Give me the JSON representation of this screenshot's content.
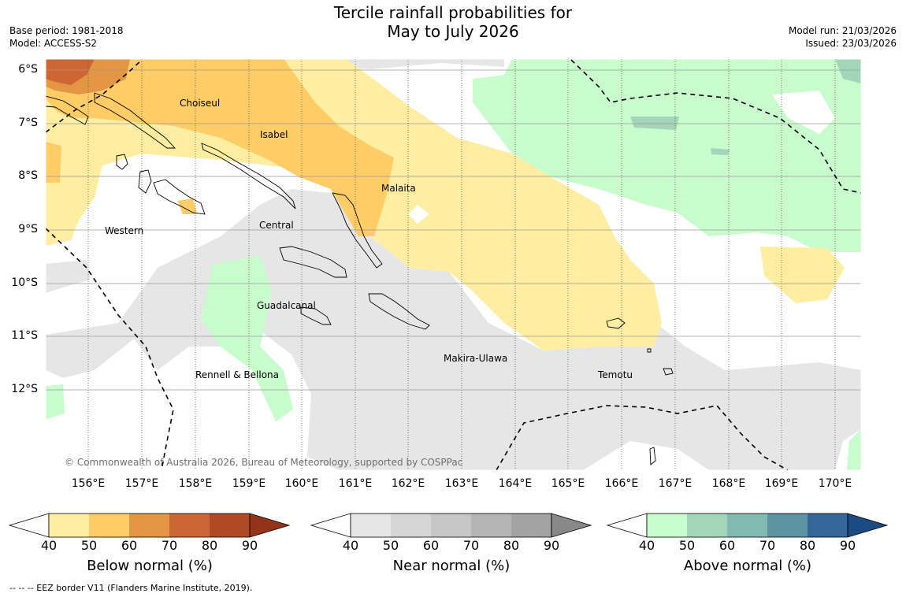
{
  "title": {
    "line1": "Tercile rainfall probabilities for",
    "line2": "May to July 2026"
  },
  "meta": {
    "base_period": "Base period: 1981-2018",
    "model": "Model: ACCESS-S2",
    "model_run": "Model run: 21/03/2026",
    "issued": "Issued: 23/03/2026"
  },
  "map": {
    "latitude_labels": [
      "6°S",
      "7°S",
      "8°S",
      "9°S",
      "10°S",
      "11°S",
      "12°S"
    ],
    "longitude_labels": [
      "156°E",
      "157°E",
      "158°E",
      "159°E",
      "160°E",
      "161°E",
      "162°E",
      "163°E",
      "164°E",
      "165°E",
      "166°E",
      "167°E",
      "168°E",
      "169°E",
      "170°E"
    ],
    "place_labels": [
      "Choiseul",
      "Isabel",
      "Malaita",
      "Central",
      "Western",
      "Guadalcanal",
      "Makira-Ulawa",
      "Rennell & Bellona",
      "Temotu"
    ],
    "copyright": "© Commonwealth of Australia 2026, Bureau of Meteorology, supported by COSPPac"
  },
  "colorbars": [
    {
      "title": "Below normal (%)",
      "ticks": [
        "40",
        "50",
        "60",
        "70",
        "80",
        "90"
      ],
      "colors": [
        "#ffeea1",
        "#ffcc66",
        "#e39643",
        "#cd6633",
        "#b04a26",
        "#953319"
      ]
    },
    {
      "title": "Near normal (%)",
      "ticks": [
        "40",
        "50",
        "60",
        "70",
        "80",
        "90"
      ],
      "colors": [
        "#e6e6e6",
        "#d6d6d6",
        "#c7c7c7",
        "#b5b5b5",
        "#a3a3a3",
        "#888888"
      ]
    },
    {
      "title": "Above normal (%)",
      "ticks": [
        "40",
        "50",
        "60",
        "70",
        "80",
        "90"
      ],
      "colors": [
        "#c8fccc",
        "#a3d6b9",
        "#82b9b1",
        "#5d94a3",
        "#336699",
        "#1a4c82"
      ]
    }
  ],
  "footer": {
    "eez": "--  --  -- EEZ border V11 (Flanders Marine Institute, 2019)."
  }
}
